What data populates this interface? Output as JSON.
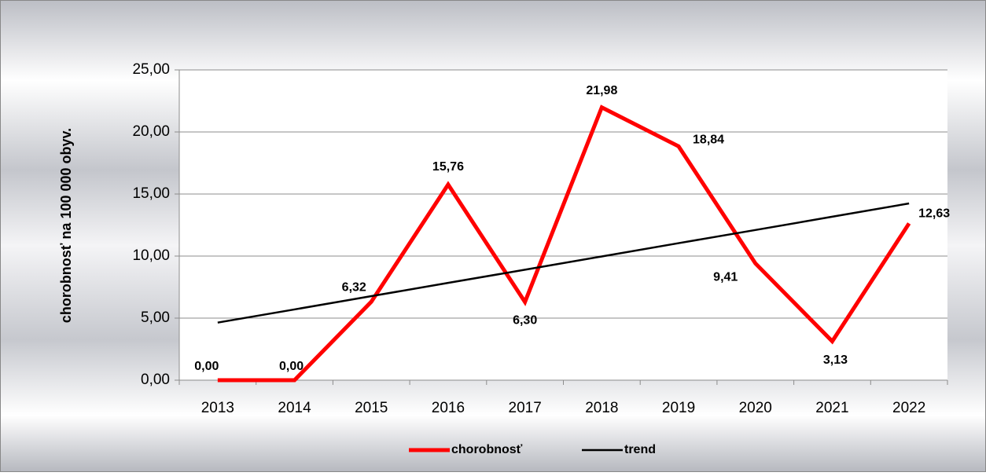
{
  "chart_data": {
    "type": "line",
    "y_label": "chorobnosť na 100 000 obyv.",
    "categories": [
      "2013",
      "2014",
      "2015",
      "2016",
      "2017",
      "2018",
      "2019",
      "2020",
      "2021",
      "2022"
    ],
    "series": [
      {
        "name": "chorobnosť",
        "color": "#ff0000",
        "values": [
          0,
          0,
          6.32,
          15.76,
          6.3,
          21.98,
          18.84,
          9.41,
          3.13,
          12.63
        ],
        "value_labels": [
          "0,00",
          "0,00",
          "6,32",
          "15,76",
          "6,30",
          "21,98",
          "18,84",
          "9,41",
          "3,13",
          "12,63"
        ]
      },
      {
        "name": "trend",
        "color": "#000000",
        "values": [
          4.64,
          5.7,
          6.77,
          7.84,
          8.9,
          9.97,
          11.04,
          12.1,
          13.17,
          14.24
        ]
      }
    ],
    "ylim": [
      0,
      25
    ],
    "yticks": [
      {
        "value": 0,
        "label": "0,00"
      },
      {
        "value": 5,
        "label": "5,00"
      },
      {
        "value": 10,
        "label": "10,00"
      },
      {
        "value": 15,
        "label": "15,00"
      },
      {
        "value": 20,
        "label": "20,00"
      },
      {
        "value": 25,
        "label": "25,00"
      }
    ],
    "grid": true,
    "legend": "bottom"
  }
}
